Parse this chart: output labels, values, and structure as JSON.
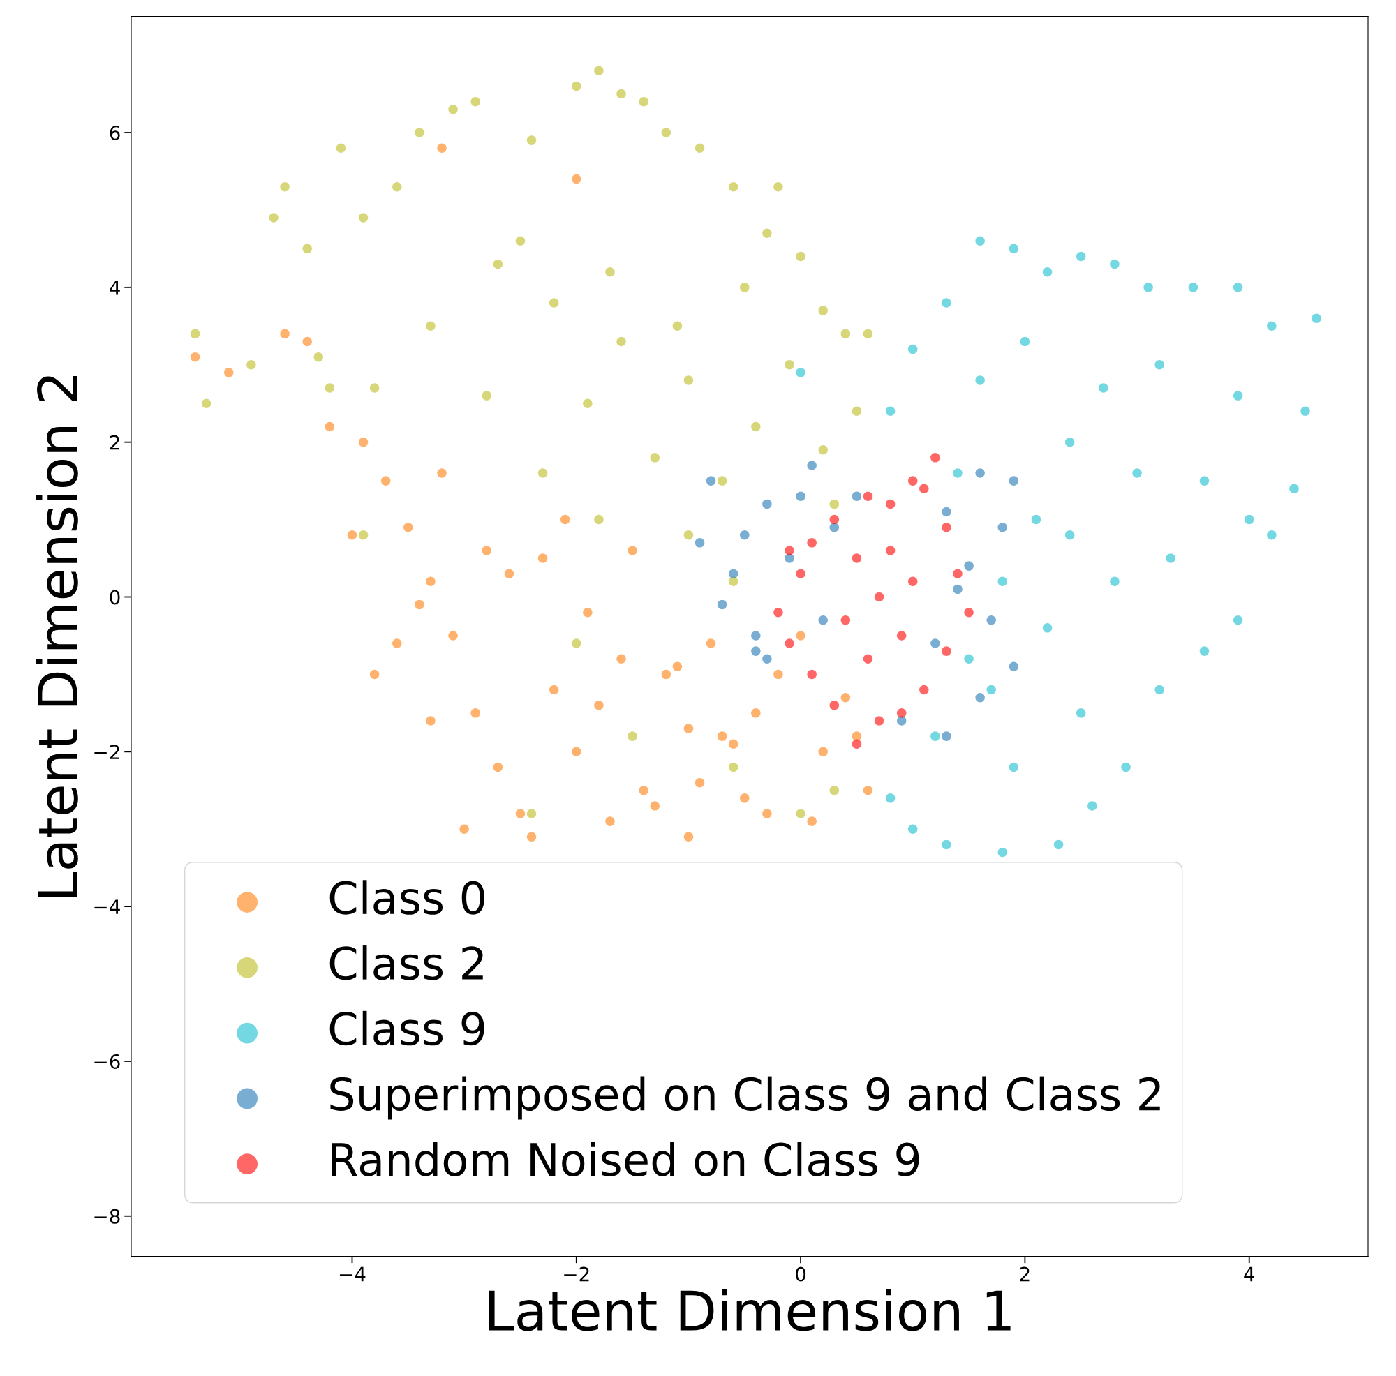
{
  "chart_data": {
    "type": "scatter",
    "xlabel": "Latent Dimension 1",
    "ylabel": "Latent Dimension 2",
    "xlim": [
      -5.97,
      5.06
    ],
    "ylim": [
      -8.52,
      7.5
    ],
    "xticks": [
      {
        "value": -4,
        "label": "−4"
      },
      {
        "value": -2,
        "label": "−2"
      },
      0,
      2,
      4
    ],
    "yticks": [
      {
        "value": -8,
        "label": "−8"
      },
      {
        "value": -6,
        "label": "−6"
      },
      {
        "value": -4,
        "label": "−4"
      },
      {
        "value": -2,
        "label": "−2"
      },
      0,
      2,
      4,
      6
    ],
    "marker": "circle",
    "legend": "lower left",
    "series": [
      {
        "name": "Class 0",
        "color": "#ff7f0e",
        "x": [
          -5.4,
          -5.1,
          -4.6,
          -4.4,
          -4.2,
          -3.9,
          -3.7,
          -3.5,
          -4.0,
          -3.3,
          -3.1,
          -3.6,
          -3.8,
          -2.9,
          -2.7,
          -2.5,
          -3.0,
          -3.4,
          -2.2,
          -2.0,
          -1.8,
          -1.6,
          -1.4,
          -1.2,
          -1.0,
          -0.8,
          -0.6,
          -0.4,
          -0.2,
          0.0,
          0.2,
          0.4,
          0.6,
          -2.6,
          -2.3,
          -1.9,
          -1.5,
          -1.1,
          -0.7,
          -0.3,
          0.1,
          -2.8,
          -2.4,
          -1.7,
          -1.3,
          -0.9,
          -0.5,
          -3.2,
          -2.1,
          -1.0,
          0.5,
          -3.3,
          -3.2,
          -2.0
        ],
        "values": [
          3.1,
          2.9,
          3.4,
          3.3,
          2.2,
          2.0,
          1.5,
          0.9,
          0.8,
          0.2,
          -0.5,
          -0.6,
          -1.0,
          -1.5,
          -2.2,
          -2.8,
          -3.0,
          -0.1,
          -1.2,
          -2.0,
          -1.4,
          -0.8,
          -2.5,
          -1.0,
          -1.7,
          -0.6,
          -1.9,
          -1.5,
          -1.0,
          -0.5,
          -2.0,
          -1.3,
          -2.5,
          0.3,
          0.5,
          -0.2,
          0.6,
          -0.9,
          -1.8,
          -2.8,
          -2.9,
          0.6,
          -3.1,
          -2.9,
          -2.7,
          -2.4,
          -2.6,
          1.6,
          1.0,
          -3.1,
          -1.8,
          -1.6,
          5.8,
          5.4
        ]
      },
      {
        "name": "Class 2",
        "color": "#bcbd22",
        "x": [
          -5.4,
          -5.3,
          -4.9,
          -4.6,
          -4.7,
          -4.4,
          -4.1,
          -3.9,
          -3.6,
          -3.4,
          -3.1,
          -2.9,
          -2.4,
          -2.0,
          -1.8,
          -1.6,
          -1.4,
          -1.2,
          -0.9,
          -0.6,
          -0.2,
          0.0,
          -0.3,
          0.2,
          0.4,
          0.6,
          0.5,
          -4.3,
          -3.8,
          -3.3,
          -2.8,
          -2.5,
          -2.2,
          -1.9,
          -1.6,
          -1.3,
          -1.0,
          -0.7,
          -0.4,
          -0.1,
          0.2,
          0.3,
          -2.3,
          -1.8,
          -1.0,
          -0.6,
          -3.9,
          -4.2,
          -2.0,
          -1.5,
          -0.6,
          0.0,
          0.3,
          -2.4,
          -1.7,
          -1.1,
          -0.5,
          -2.7
        ],
        "values": [
          3.4,
          2.5,
          3.0,
          5.3,
          4.9,
          4.5,
          5.8,
          4.9,
          5.3,
          6.0,
          6.3,
          6.4,
          5.9,
          6.6,
          6.8,
          6.5,
          6.4,
          6.0,
          5.8,
          5.3,
          5.3,
          4.4,
          4.7,
          3.7,
          3.4,
          3.4,
          2.4,
          3.1,
          2.7,
          3.5,
          2.6,
          4.6,
          3.8,
          2.5,
          3.3,
          1.8,
          2.8,
          1.5,
          2.2,
          3.0,
          1.9,
          1.2,
          1.6,
          1.0,
          0.8,
          0.2,
          0.8,
          2.7,
          -0.6,
          -1.8,
          -2.2,
          -2.8,
          -2.5,
          -2.8,
          4.2,
          3.5,
          4.0,
          4.3
        ]
      },
      {
        "name": "Class 9",
        "color": "#17becf",
        "x": [
          0.8,
          1.0,
          1.3,
          1.6,
          1.9,
          2.2,
          2.5,
          2.8,
          3.1,
          3.5,
          3.9,
          4.2,
          4.6,
          4.5,
          4.4,
          4.2,
          3.9,
          3.6,
          3.2,
          2.9,
          2.6,
          2.3,
          1.8,
          1.3,
          1.0,
          0.8,
          1.2,
          1.5,
          1.8,
          2.1,
          2.4,
          2.7,
          3.0,
          3.3,
          3.6,
          3.9,
          2.2,
          2.5,
          1.9,
          1.4,
          1.6,
          2.0,
          2.8,
          3.2,
          4.0,
          2.4,
          1.7,
          0.0
        ],
        "values": [
          2.4,
          3.2,
          3.8,
          4.6,
          4.5,
          4.2,
          4.4,
          4.3,
          4.0,
          4.0,
          4.0,
          3.5,
          3.6,
          2.4,
          1.4,
          0.8,
          -0.3,
          -0.7,
          -1.2,
          -2.2,
          -2.7,
          -3.2,
          -3.3,
          -3.2,
          -3.0,
          -2.6,
          -1.8,
          -0.8,
          0.2,
          1.0,
          2.0,
          2.7,
          1.6,
          0.5,
          1.5,
          2.6,
          -0.4,
          -1.5,
          -2.2,
          1.6,
          2.8,
          3.3,
          0.2,
          3.0,
          1.0,
          0.8,
          -1.2,
          2.9
        ]
      },
      {
        "name": "Superimposed on Class 9 and Class 2",
        "color": "#1f77b4",
        "x": [
          -0.8,
          -0.5,
          -0.6,
          -0.3,
          0.0,
          -0.9,
          -0.7,
          -0.4,
          -0.3,
          0.2,
          0.5,
          1.3,
          1.6,
          1.9,
          1.8,
          1.5,
          1.7,
          1.9,
          1.6,
          1.3,
          0.9,
          1.2,
          1.4,
          -0.1,
          0.3,
          -0.4,
          0.1
        ],
        "values": [
          1.5,
          0.8,
          0.3,
          1.2,
          1.3,
          0.7,
          -0.1,
          -0.5,
          -0.8,
          -0.3,
          1.3,
          1.1,
          1.6,
          1.5,
          0.9,
          0.4,
          -0.3,
          -0.9,
          -1.3,
          -1.8,
          -1.6,
          -0.6,
          0.1,
          0.5,
          0.9,
          -0.7,
          1.7
        ]
      },
      {
        "name": "Random Noised on Class 9",
        "color": "#ff0000",
        "x": [
          0.6,
          0.8,
          1.0,
          1.2,
          1.1,
          1.3,
          1.4,
          1.5,
          1.3,
          1.1,
          0.9,
          0.7,
          0.5,
          0.3,
          0.1,
          -0.1,
          -0.2,
          0.0,
          0.1,
          0.3,
          0.5,
          0.7,
          0.9,
          0.6,
          0.8,
          0.4,
          1.0,
          -0.1
        ],
        "values": [
          1.3,
          1.2,
          1.5,
          1.8,
          1.4,
          0.9,
          0.3,
          -0.2,
          -0.7,
          -1.2,
          -1.5,
          -1.6,
          -1.9,
          -1.4,
          -1.0,
          -0.6,
          -0.2,
          0.3,
          0.7,
          1.0,
          0.5,
          0.0,
          -0.5,
          -0.8,
          0.6,
          -0.3,
          0.2,
          0.6
        ]
      }
    ]
  }
}
